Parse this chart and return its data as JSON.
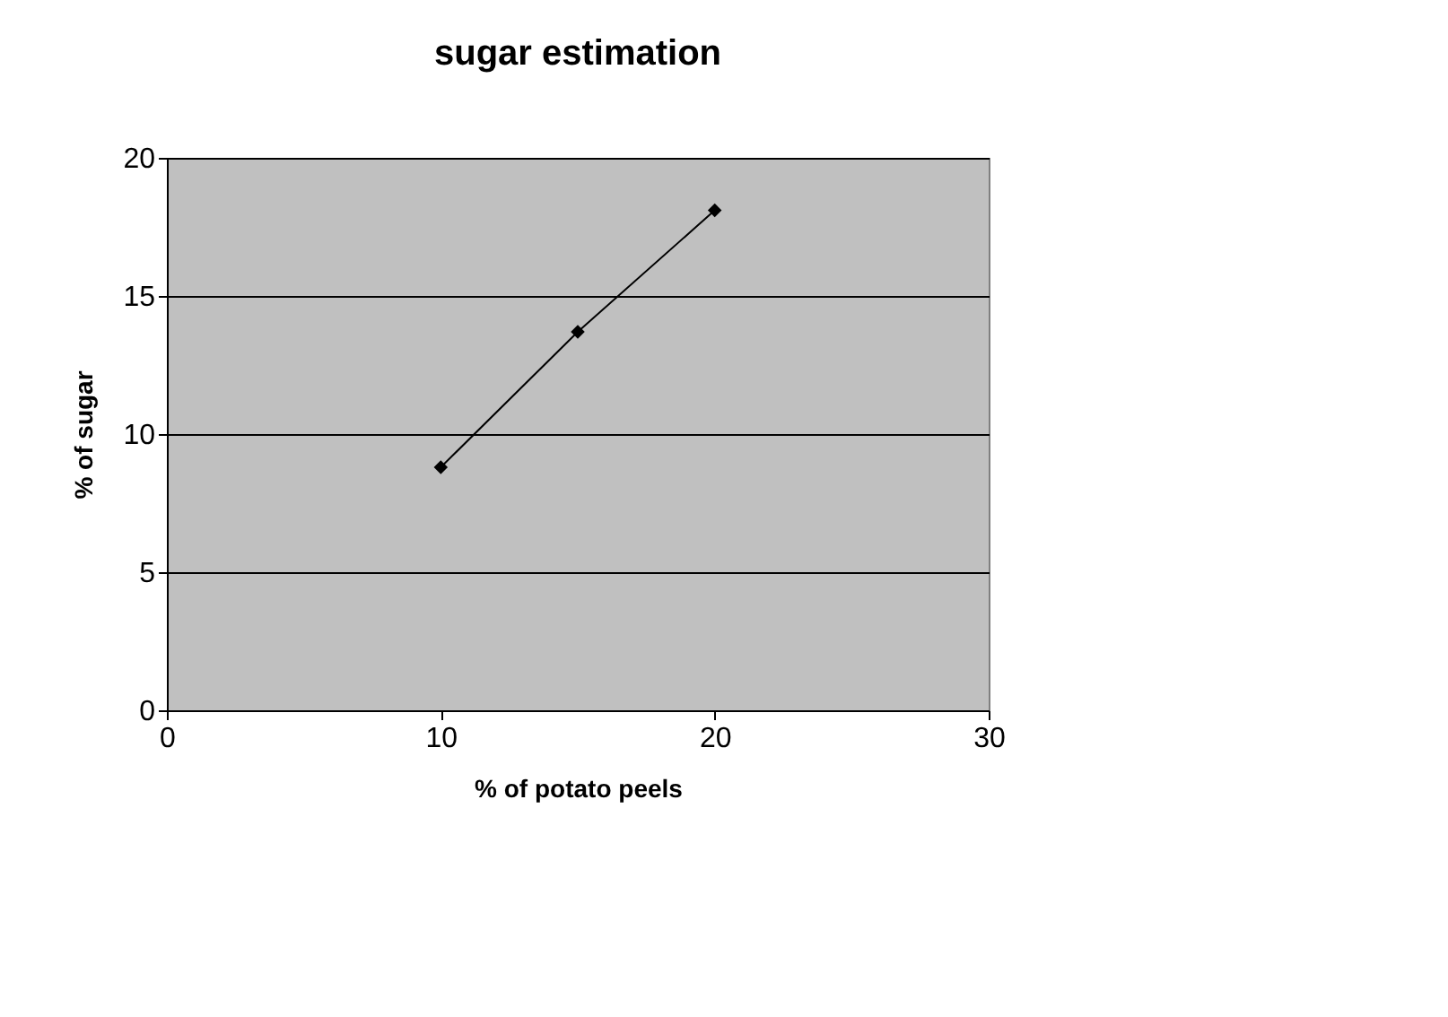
{
  "chart_data": {
    "type": "line",
    "title": "sugar estimation",
    "xlabel": "% of potato peels",
    "ylabel": "% of sugar",
    "x": [
      10,
      15,
      20
    ],
    "series": [
      {
        "color": "#000000",
        "values": [
          8.8,
          13.7,
          18.1
        ]
      }
    ],
    "xlim": [
      0,
      30
    ],
    "xticks": [
      0,
      10,
      20,
      30
    ],
    "ylim": [
      0,
      20
    ],
    "yticks": [
      0,
      5,
      10,
      15,
      20
    ],
    "grid": "y",
    "marker": "diamond",
    "line_style": "solid"
  }
}
